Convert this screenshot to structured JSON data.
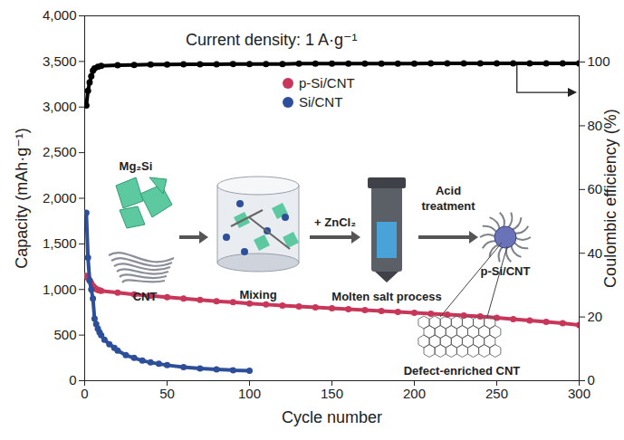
{
  "chart_data": {
    "type": "scatter",
    "annotation": "Current density: 1 A·g⁻¹",
    "x_label": "Cycle number",
    "y_label": "Capacity (mAh·g⁻¹)",
    "y2_label": "Coulombic efficiency (%)",
    "xlim": [
      0,
      300
    ],
    "xticks": [
      0,
      50,
      100,
      150,
      200,
      250,
      300
    ],
    "ylim": [
      0,
      4000
    ],
    "yticks": [
      0,
      500,
      {
        "value": 1000,
        "label": "1,000"
      },
      {
        "value": 1500,
        "label": "1,500"
      },
      {
        "value": 2000,
        "label": "2,000"
      },
      {
        "value": 2500,
        "label": "2,500"
      },
      {
        "value": 3000,
        "label": "3,000"
      },
      {
        "value": 3500,
        "label": "3,500"
      },
      {
        "value": 4000,
        "label": "4,000"
      }
    ],
    "y2lim": [
      0,
      114.5
    ],
    "y2ticks": [
      0,
      20,
      40,
      60,
      80,
      100
    ],
    "grid": false,
    "legend": "top",
    "series": [
      {
        "name": "p-Si/CNT",
        "color": "#c8375a",
        "marker": "circle",
        "x": [
          1,
          2,
          3,
          4,
          5,
          6,
          7,
          8,
          9,
          10,
          20,
          30,
          40,
          50,
          60,
          70,
          80,
          90,
          100,
          110,
          120,
          130,
          140,
          150,
          160,
          170,
          180,
          190,
          200,
          210,
          220,
          230,
          240,
          250,
          260,
          270,
          280,
          290,
          300
        ],
        "values": [
          1150,
          1130,
          1100,
          1070,
          1040,
          1020,
          1005,
          995,
          990,
          985,
          965,
          945,
          930,
          915,
          900,
          885,
          870,
          860,
          845,
          835,
          825,
          815,
          805,
          795,
          785,
          775,
          765,
          755,
          745,
          735,
          725,
          715,
          705,
          690,
          675,
          660,
          645,
          630,
          610
        ]
      },
      {
        "name": "Si/CNT",
        "color": "#2d4f9a",
        "marker": "circle",
        "x": [
          1,
          2,
          3,
          4,
          5,
          6,
          7,
          8,
          9,
          10,
          12,
          15,
          18,
          20,
          25,
          30,
          35,
          40,
          45,
          50,
          60,
          70,
          80,
          90,
          100
        ],
        "values": [
          1840,
          1350,
          1100,
          1000,
          900,
          680,
          620,
          570,
          530,
          500,
          450,
          400,
          360,
          330,
          280,
          250,
          220,
          200,
          185,
          170,
          150,
          135,
          125,
          115,
          110
        ]
      },
      {
        "axis": "y2",
        "color": "#000000",
        "marker": "circle",
        "x": [
          1,
          2,
          3,
          4,
          5,
          6,
          8,
          10,
          20,
          30,
          40,
          50,
          60,
          70,
          80,
          90,
          100,
          110,
          120,
          130,
          140,
          150,
          160,
          170,
          180,
          190,
          200,
          210,
          220,
          230,
          240,
          250,
          260,
          270,
          280,
          290,
          300
        ],
        "values": [
          86.4,
          91.0,
          93.6,
          95.5,
          97.3,
          98.0,
          98.5,
          98.8,
          99.0,
          99.1,
          99.2,
          99.2,
          99.3,
          99.3,
          99.3,
          99.4,
          99.4,
          99.4,
          99.4,
          99.5,
          99.5,
          99.5,
          99.5,
          99.5,
          99.5,
          99.5,
          99.5,
          99.6,
          99.6,
          99.6,
          99.6,
          99.6,
          99.6,
          99.6,
          99.6,
          99.6,
          99.6
        ]
      }
    ],
    "inset": {
      "inputs": [
        "Mg₂Si",
        "CNT"
      ],
      "steps": [
        "Mixing",
        "Molten salt process"
      ],
      "reagent": "+ ZnCl₂",
      "treatment": "Acid treatment",
      "product": "p-Si/CNT",
      "detail": "Defect-enriched CNT"
    }
  }
}
